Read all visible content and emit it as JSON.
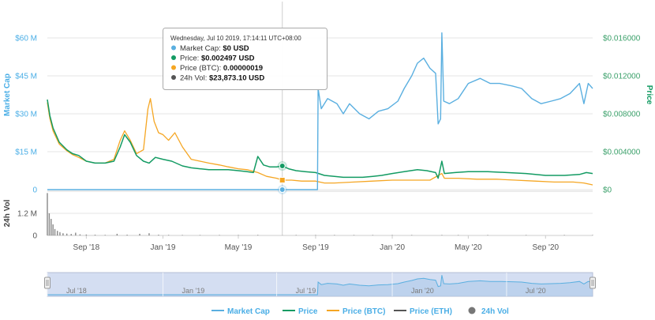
{
  "chart_data": {
    "type": "line",
    "y_axes": {
      "left": {
        "label": "Market Cap",
        "ticks": [
          "0",
          "$15 M",
          "$30 M",
          "$45 M",
          "$60 M"
        ],
        "ylim": [
          0,
          60000000
        ]
      },
      "right": {
        "label": "Price",
        "ticks": [
          "$0",
          "$0.004000",
          "$0.008000",
          "$0.012000",
          "$0.016000"
        ],
        "ylim": [
          0,
          0.016
        ]
      },
      "volume": {
        "label": "24h Vol",
        "ticks": [
          "0",
          "1.2 M"
        ],
        "ylim": [
          0,
          2400000
        ]
      }
    },
    "x_axis": {
      "range": [
        "2018-07-01",
        "2020-11-15"
      ],
      "ticks": [
        {
          "label": "Sep '18",
          "date": "2018-09-01"
        },
        {
          "label": "Jan '19",
          "date": "2019-01-01"
        },
        {
          "label": "May '19",
          "date": "2019-05-01"
        },
        {
          "label": "Sep '19",
          "date": "2019-09-01"
        },
        {
          "label": "Jan '20",
          "date": "2020-01-01"
        },
        {
          "label": "May '20",
          "date": "2020-05-01"
        },
        {
          "label": "Sep '20",
          "date": "2020-09-01"
        }
      ]
    },
    "navigator": {
      "ticks": [
        {
          "label": "Jul '18",
          "date": "2018-07-01"
        },
        {
          "label": "Jan '19",
          "date": "2019-01-01"
        },
        {
          "label": "Jul '19",
          "date": "2019-07-01"
        },
        {
          "label": "Jan '20",
          "date": "2020-01-01"
        },
        {
          "label": "Jul '20",
          "date": "2020-07-01"
        }
      ]
    },
    "legend": {
      "placement": "bottom",
      "items": [
        {
          "name": "Market Cap",
          "color": "#5aafe0",
          "marker": "line"
        },
        {
          "name": "Price",
          "color": "#139b63",
          "marker": "line"
        },
        {
          "name": "Price (BTC)",
          "color": "#f5a623",
          "marker": "line"
        },
        {
          "name": "Price (ETH)",
          "color": "#555555",
          "marker": "line"
        },
        {
          "name": "24h Vol",
          "color": "#777777",
          "marker": "circle"
        }
      ]
    },
    "grid": {
      "horizontal": true,
      "vertical": false
    },
    "series": [
      {
        "name": "Market Cap",
        "axis": "left",
        "color": "#5aafe0",
        "points": [
          [
            "2018-07-01",
            0
          ],
          [
            "2019-09-04",
            0
          ],
          [
            "2019-09-05",
            40000000
          ],
          [
            "2019-09-10",
            32000000
          ],
          [
            "2019-09-20",
            36000000
          ],
          [
            "2019-10-05",
            34000000
          ],
          [
            "2019-10-15",
            30000000
          ],
          [
            "2019-10-25",
            34000000
          ],
          [
            "2019-11-10",
            30000000
          ],
          [
            "2019-11-25",
            28000000
          ],
          [
            "2019-12-10",
            31000000
          ],
          [
            "2019-12-25",
            32000000
          ],
          [
            "2020-01-10",
            35000000
          ],
          [
            "2020-01-20",
            40000000
          ],
          [
            "2020-02-01",
            45000000
          ],
          [
            "2020-02-10",
            50000000
          ],
          [
            "2020-02-20",
            52000000
          ],
          [
            "2020-03-01",
            48000000
          ],
          [
            "2020-03-10",
            46000000
          ],
          [
            "2020-03-14",
            26000000
          ],
          [
            "2020-03-18",
            28000000
          ],
          [
            "2020-03-20",
            62000000
          ],
          [
            "2020-03-23",
            35000000
          ],
          [
            "2020-04-01",
            34000000
          ],
          [
            "2020-04-15",
            36000000
          ],
          [
            "2020-05-01",
            42000000
          ],
          [
            "2020-05-20",
            44000000
          ],
          [
            "2020-06-05",
            42000000
          ],
          [
            "2020-06-20",
            42000000
          ],
          [
            "2020-07-10",
            41000000
          ],
          [
            "2020-07-25",
            40000000
          ],
          [
            "2020-08-10",
            36000000
          ],
          [
            "2020-08-25",
            34000000
          ],
          [
            "2020-09-10",
            35000000
          ],
          [
            "2020-09-25",
            36000000
          ],
          [
            "2020-10-10",
            38000000
          ],
          [
            "2020-10-25",
            42000000
          ],
          [
            "2020-11-01",
            34000000
          ],
          [
            "2020-11-08",
            42000000
          ],
          [
            "2020-11-15",
            40000000
          ]
        ]
      },
      {
        "name": "Price",
        "axis": "right",
        "color": "#139b63",
        "points": [
          [
            "2018-07-01",
            0.0095
          ],
          [
            "2018-07-05",
            0.0078
          ],
          [
            "2018-07-10",
            0.0065
          ],
          [
            "2018-07-20",
            0.005
          ],
          [
            "2018-08-01",
            0.0042
          ],
          [
            "2018-08-10",
            0.0038
          ],
          [
            "2018-08-20",
            0.0036
          ],
          [
            "2018-09-01",
            0.003
          ],
          [
            "2018-09-15",
            0.0028
          ],
          [
            "2018-10-01",
            0.0028
          ],
          [
            "2018-10-15",
            0.003
          ],
          [
            "2018-10-25",
            0.0045
          ],
          [
            "2018-11-01",
            0.0058
          ],
          [
            "2018-11-10",
            0.005
          ],
          [
            "2018-11-20",
            0.0036
          ],
          [
            "2018-12-01",
            0.003
          ],
          [
            "2018-12-10",
            0.0028
          ],
          [
            "2018-12-20",
            0.0034
          ],
          [
            "2019-01-01",
            0.0032
          ],
          [
            "2019-01-15",
            0.003
          ],
          [
            "2019-02-01",
            0.0025
          ],
          [
            "2019-02-15",
            0.0023
          ],
          [
            "2019-03-01",
            0.0022
          ],
          [
            "2019-03-15",
            0.0021
          ],
          [
            "2019-04-01",
            0.0021
          ],
          [
            "2019-04-15",
            0.0021
          ],
          [
            "2019-05-01",
            0.002
          ],
          [
            "2019-05-15",
            0.0019
          ],
          [
            "2019-05-25",
            0.0018
          ],
          [
            "2019-06-01",
            0.0035
          ],
          [
            "2019-06-10",
            0.0026
          ],
          [
            "2019-06-20",
            0.0024
          ],
          [
            "2019-07-01",
            0.0024
          ],
          [
            "2019-07-10",
            0.002497
          ],
          [
            "2019-07-20",
            0.0022
          ],
          [
            "2019-08-01",
            0.002
          ],
          [
            "2019-08-15",
            0.0019
          ],
          [
            "2019-09-01",
            0.0018
          ],
          [
            "2019-09-15",
            0.0015
          ],
          [
            "2019-10-01",
            0.0014
          ],
          [
            "2019-10-15",
            0.0013
          ],
          [
            "2019-11-01",
            0.0013
          ],
          [
            "2019-11-15",
            0.0013
          ],
          [
            "2019-12-01",
            0.0014
          ],
          [
            "2019-12-15",
            0.0015
          ],
          [
            "2020-01-01",
            0.0017
          ],
          [
            "2020-01-20",
            0.0019
          ],
          [
            "2020-02-10",
            0.0021
          ],
          [
            "2020-02-25",
            0.002
          ],
          [
            "2020-03-10",
            0.0018
          ],
          [
            "2020-03-14",
            0.0012
          ],
          [
            "2020-03-20",
            0.003
          ],
          [
            "2020-03-24",
            0.0017
          ],
          [
            "2020-04-10",
            0.0018
          ],
          [
            "2020-05-01",
            0.0019
          ],
          [
            "2020-06-01",
            0.0019
          ],
          [
            "2020-07-01",
            0.0018
          ],
          [
            "2020-08-01",
            0.0017
          ],
          [
            "2020-09-01",
            0.0015
          ],
          [
            "2020-10-01",
            0.0015
          ],
          [
            "2020-10-25",
            0.0016
          ],
          [
            "2020-11-05",
            0.0018
          ],
          [
            "2020-11-15",
            0.0017
          ]
        ]
      },
      {
        "name": "Price (BTC)",
        "axis": "right",
        "color": "#f5a623",
        "points": [
          [
            "2018-07-01",
            0.0092
          ],
          [
            "2018-07-05",
            0.0075
          ],
          [
            "2018-07-10",
            0.0062
          ],
          [
            "2018-07-20",
            0.0048
          ],
          [
            "2018-08-01",
            0.0041
          ],
          [
            "2018-08-10",
            0.0037
          ],
          [
            "2018-08-20",
            0.0034
          ],
          [
            "2018-09-01",
            0.003
          ],
          [
            "2018-09-15",
            0.0028
          ],
          [
            "2018-10-01",
            0.0028
          ],
          [
            "2018-10-15",
            0.0032
          ],
          [
            "2018-10-25",
            0.0052
          ],
          [
            "2018-11-01",
            0.0062
          ],
          [
            "2018-11-10",
            0.0052
          ],
          [
            "2018-11-20",
            0.0038
          ],
          [
            "2018-12-01",
            0.0042
          ],
          [
            "2018-12-08",
            0.0085
          ],
          [
            "2018-12-12",
            0.0096
          ],
          [
            "2018-12-18",
            0.0072
          ],
          [
            "2018-12-25",
            0.006
          ],
          [
            "2019-01-01",
            0.0058
          ],
          [
            "2019-01-10",
            0.0052
          ],
          [
            "2019-01-20",
            0.006
          ],
          [
            "2019-02-01",
            0.0045
          ],
          [
            "2019-02-15",
            0.0032
          ],
          [
            "2019-03-01",
            0.003
          ],
          [
            "2019-03-15",
            0.0028
          ],
          [
            "2019-04-01",
            0.0026
          ],
          [
            "2019-04-15",
            0.0024
          ],
          [
            "2019-05-01",
            0.0022
          ],
          [
            "2019-05-15",
            0.0021
          ],
          [
            "2019-06-01",
            0.0018
          ],
          [
            "2019-06-15",
            0.0014
          ],
          [
            "2019-07-01",
            0.0012
          ],
          [
            "2019-07-10",
            0.001
          ],
          [
            "2019-07-25",
            0.001
          ],
          [
            "2019-08-10",
            0.0009
          ],
          [
            "2019-09-01",
            0.0009
          ],
          [
            "2019-09-15",
            0.0007
          ],
          [
            "2019-10-01",
            0.0007
          ],
          [
            "2019-11-01",
            0.0008
          ],
          [
            "2019-12-01",
            0.0009
          ],
          [
            "2020-01-01",
            0.001
          ],
          [
            "2020-02-01",
            0.001
          ],
          [
            "2020-03-01",
            0.001
          ],
          [
            "2020-03-20",
            0.0017
          ],
          [
            "2020-03-24",
            0.0012
          ],
          [
            "2020-04-15",
            0.0012
          ],
          [
            "2020-05-15",
            0.0011
          ],
          [
            "2020-06-15",
            0.0011
          ],
          [
            "2020-07-15",
            0.001
          ],
          [
            "2020-08-15",
            0.0009
          ],
          [
            "2020-09-15",
            0.0008
          ],
          [
            "2020-10-15",
            0.0008
          ],
          [
            "2020-11-01",
            0.0007
          ],
          [
            "2020-11-15",
            0.0005
          ]
        ]
      },
      {
        "name": "24h Vol",
        "axis": "volume",
        "color": "#777777",
        "points": [
          [
            "2018-07-01",
            2300000
          ],
          [
            "2018-07-04",
            1200000
          ],
          [
            "2018-07-07",
            900000
          ],
          [
            "2018-07-10",
            600000
          ],
          [
            "2018-07-13",
            350000
          ],
          [
            "2018-07-17",
            250000
          ],
          [
            "2018-07-21",
            180000
          ],
          [
            "2018-07-26",
            120000
          ],
          [
            "2018-08-01",
            100000
          ],
          [
            "2018-08-08",
            80000
          ],
          [
            "2018-08-15",
            150000
          ],
          [
            "2018-08-22",
            60000
          ],
          [
            "2018-09-01",
            50000
          ],
          [
            "2018-09-15",
            40000
          ],
          [
            "2018-10-01",
            30000
          ],
          [
            "2018-10-20",
            90000
          ],
          [
            "2018-11-05",
            40000
          ],
          [
            "2018-11-25",
            90000
          ],
          [
            "2018-12-10",
            120000
          ],
          [
            "2018-12-25",
            40000
          ],
          [
            "2019-01-10",
            30000
          ],
          [
            "2019-02-01",
            20000
          ],
          [
            "2019-03-01",
            20000
          ],
          [
            "2019-04-01",
            15000
          ],
          [
            "2019-05-01",
            15000
          ],
          [
            "2019-06-01",
            30000
          ],
          [
            "2019-07-10",
            23873
          ],
          [
            "2019-08-01",
            10000
          ],
          [
            "2019-09-01",
            8000
          ],
          [
            "2019-10-01",
            5000
          ],
          [
            "2019-11-01",
            5000
          ],
          [
            "2019-12-01",
            5000
          ],
          [
            "2020-01-01",
            5000
          ],
          [
            "2020-02-01",
            5000
          ],
          [
            "2020-03-20",
            25000
          ],
          [
            "2020-04-15",
            5000
          ],
          [
            "2020-06-01",
            4000
          ],
          [
            "2020-08-01",
            4000
          ],
          [
            "2020-10-01",
            3000
          ],
          [
            "2020-11-15",
            3000
          ]
        ]
      }
    ],
    "tooltip": {
      "date": "Wednesday, Jul 10 2019, 17:14:11 UTC+08:00",
      "date_value": "2019-07-10",
      "rows": [
        {
          "label": "Market Cap:",
          "value": "$0 USD",
          "color": "#5aafe0"
        },
        {
          "label": "Price:",
          "value": "$0.002497 USD",
          "color": "#139b63"
        },
        {
          "label": "Price (BTC):",
          "value": "0.00000019",
          "color": "#f5a623"
        },
        {
          "label": "24h Vol:",
          "value": "$23,873.10 USD",
          "color": "#555555"
        }
      ]
    }
  }
}
